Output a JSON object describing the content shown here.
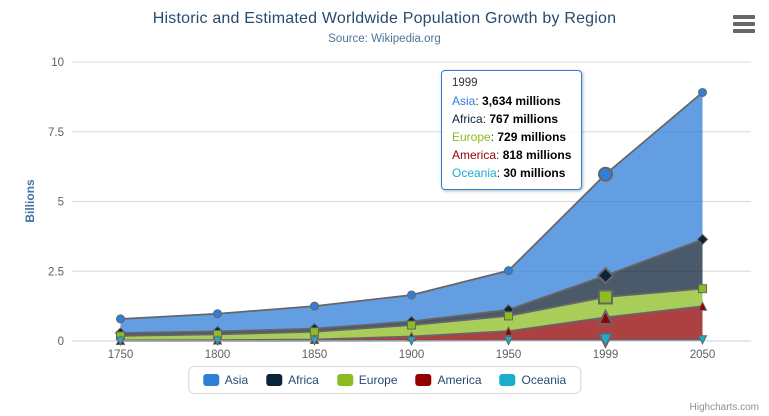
{
  "header": {
    "title": "Historic and Estimated Worldwide Population Growth by Region",
    "subtitle": "Source: Wikipedia.org"
  },
  "y_axis": {
    "title": "Billions",
    "ticks": [
      0,
      2.5,
      5,
      7.5,
      10
    ]
  },
  "x_axis": {
    "categories": [
      "1750",
      "1800",
      "1850",
      "1900",
      "1950",
      "1999",
      "2050"
    ]
  },
  "chart_data": {
    "type": "area",
    "stacking": "normal",
    "title": "Historic and Estimated Worldwide Population Growth by Region",
    "subtitle": "Source: Wikipedia.org",
    "xlabel": "",
    "ylabel": "Billions",
    "ylim": [
      0,
      10
    ],
    "grid": true,
    "legend_position": "bottom",
    "units": "millions",
    "categories": [
      "1750",
      "1800",
      "1850",
      "1900",
      "1950",
      "1999",
      "2050"
    ],
    "series": [
      {
        "name": "Asia",
        "color": "#2f7ed8",
        "marker": "circle",
        "values": [
          502,
          635,
          809,
          947,
          1402,
          3634,
          5268
        ]
      },
      {
        "name": "Africa",
        "color": "#0d233a",
        "marker": "diamond",
        "values": [
          106,
          107,
          111,
          133,
          221,
          767,
          1766
        ]
      },
      {
        "name": "Europe",
        "color": "#8bbc21",
        "marker": "square",
        "values": [
          163,
          203,
          276,
          408,
          547,
          729,
          628
        ]
      },
      {
        "name": "America",
        "color": "#910000",
        "marker": "triangle",
        "values": [
          18,
          31,
          54,
          156,
          339,
          818,
          1201
        ]
      },
      {
        "name": "Oceania",
        "color": "#1aadce",
        "marker": "triangle-down",
        "values": [
          2,
          2,
          2,
          6,
          13,
          30,
          46
        ]
      }
    ],
    "hover_index": 5,
    "fill_opacity": 0.75,
    "line_color": "#666666",
    "grid_color": "#d8d8d8",
    "axis_line_color": "#c0d0e0",
    "label_color": "#606060"
  },
  "tooltip": {
    "header": "1999",
    "border_color": "#2f7ed8",
    "rows": [
      {
        "label": "Asia",
        "value": "3,634 millions",
        "color": "#2f7ed8"
      },
      {
        "label": "Africa",
        "value": "767 millions",
        "color": "#0d233a"
      },
      {
        "label": "Europe",
        "value": "729 millions",
        "color": "#8bbc21"
      },
      {
        "label": "America",
        "value": "818 millions",
        "color": "#910000"
      },
      {
        "label": "Oceania",
        "value": "30 millions",
        "color": "#1aadce"
      }
    ]
  },
  "legend": {
    "items": [
      {
        "label": "Asia",
        "color": "#2f7ed8"
      },
      {
        "label": "Africa",
        "color": "#0d233a"
      },
      {
        "label": "Europe",
        "color": "#8bbc21"
      },
      {
        "label": "America",
        "color": "#910000"
      },
      {
        "label": "Oceania",
        "color": "#1aadce"
      }
    ]
  },
  "credits": {
    "label": "Highcharts.com"
  }
}
